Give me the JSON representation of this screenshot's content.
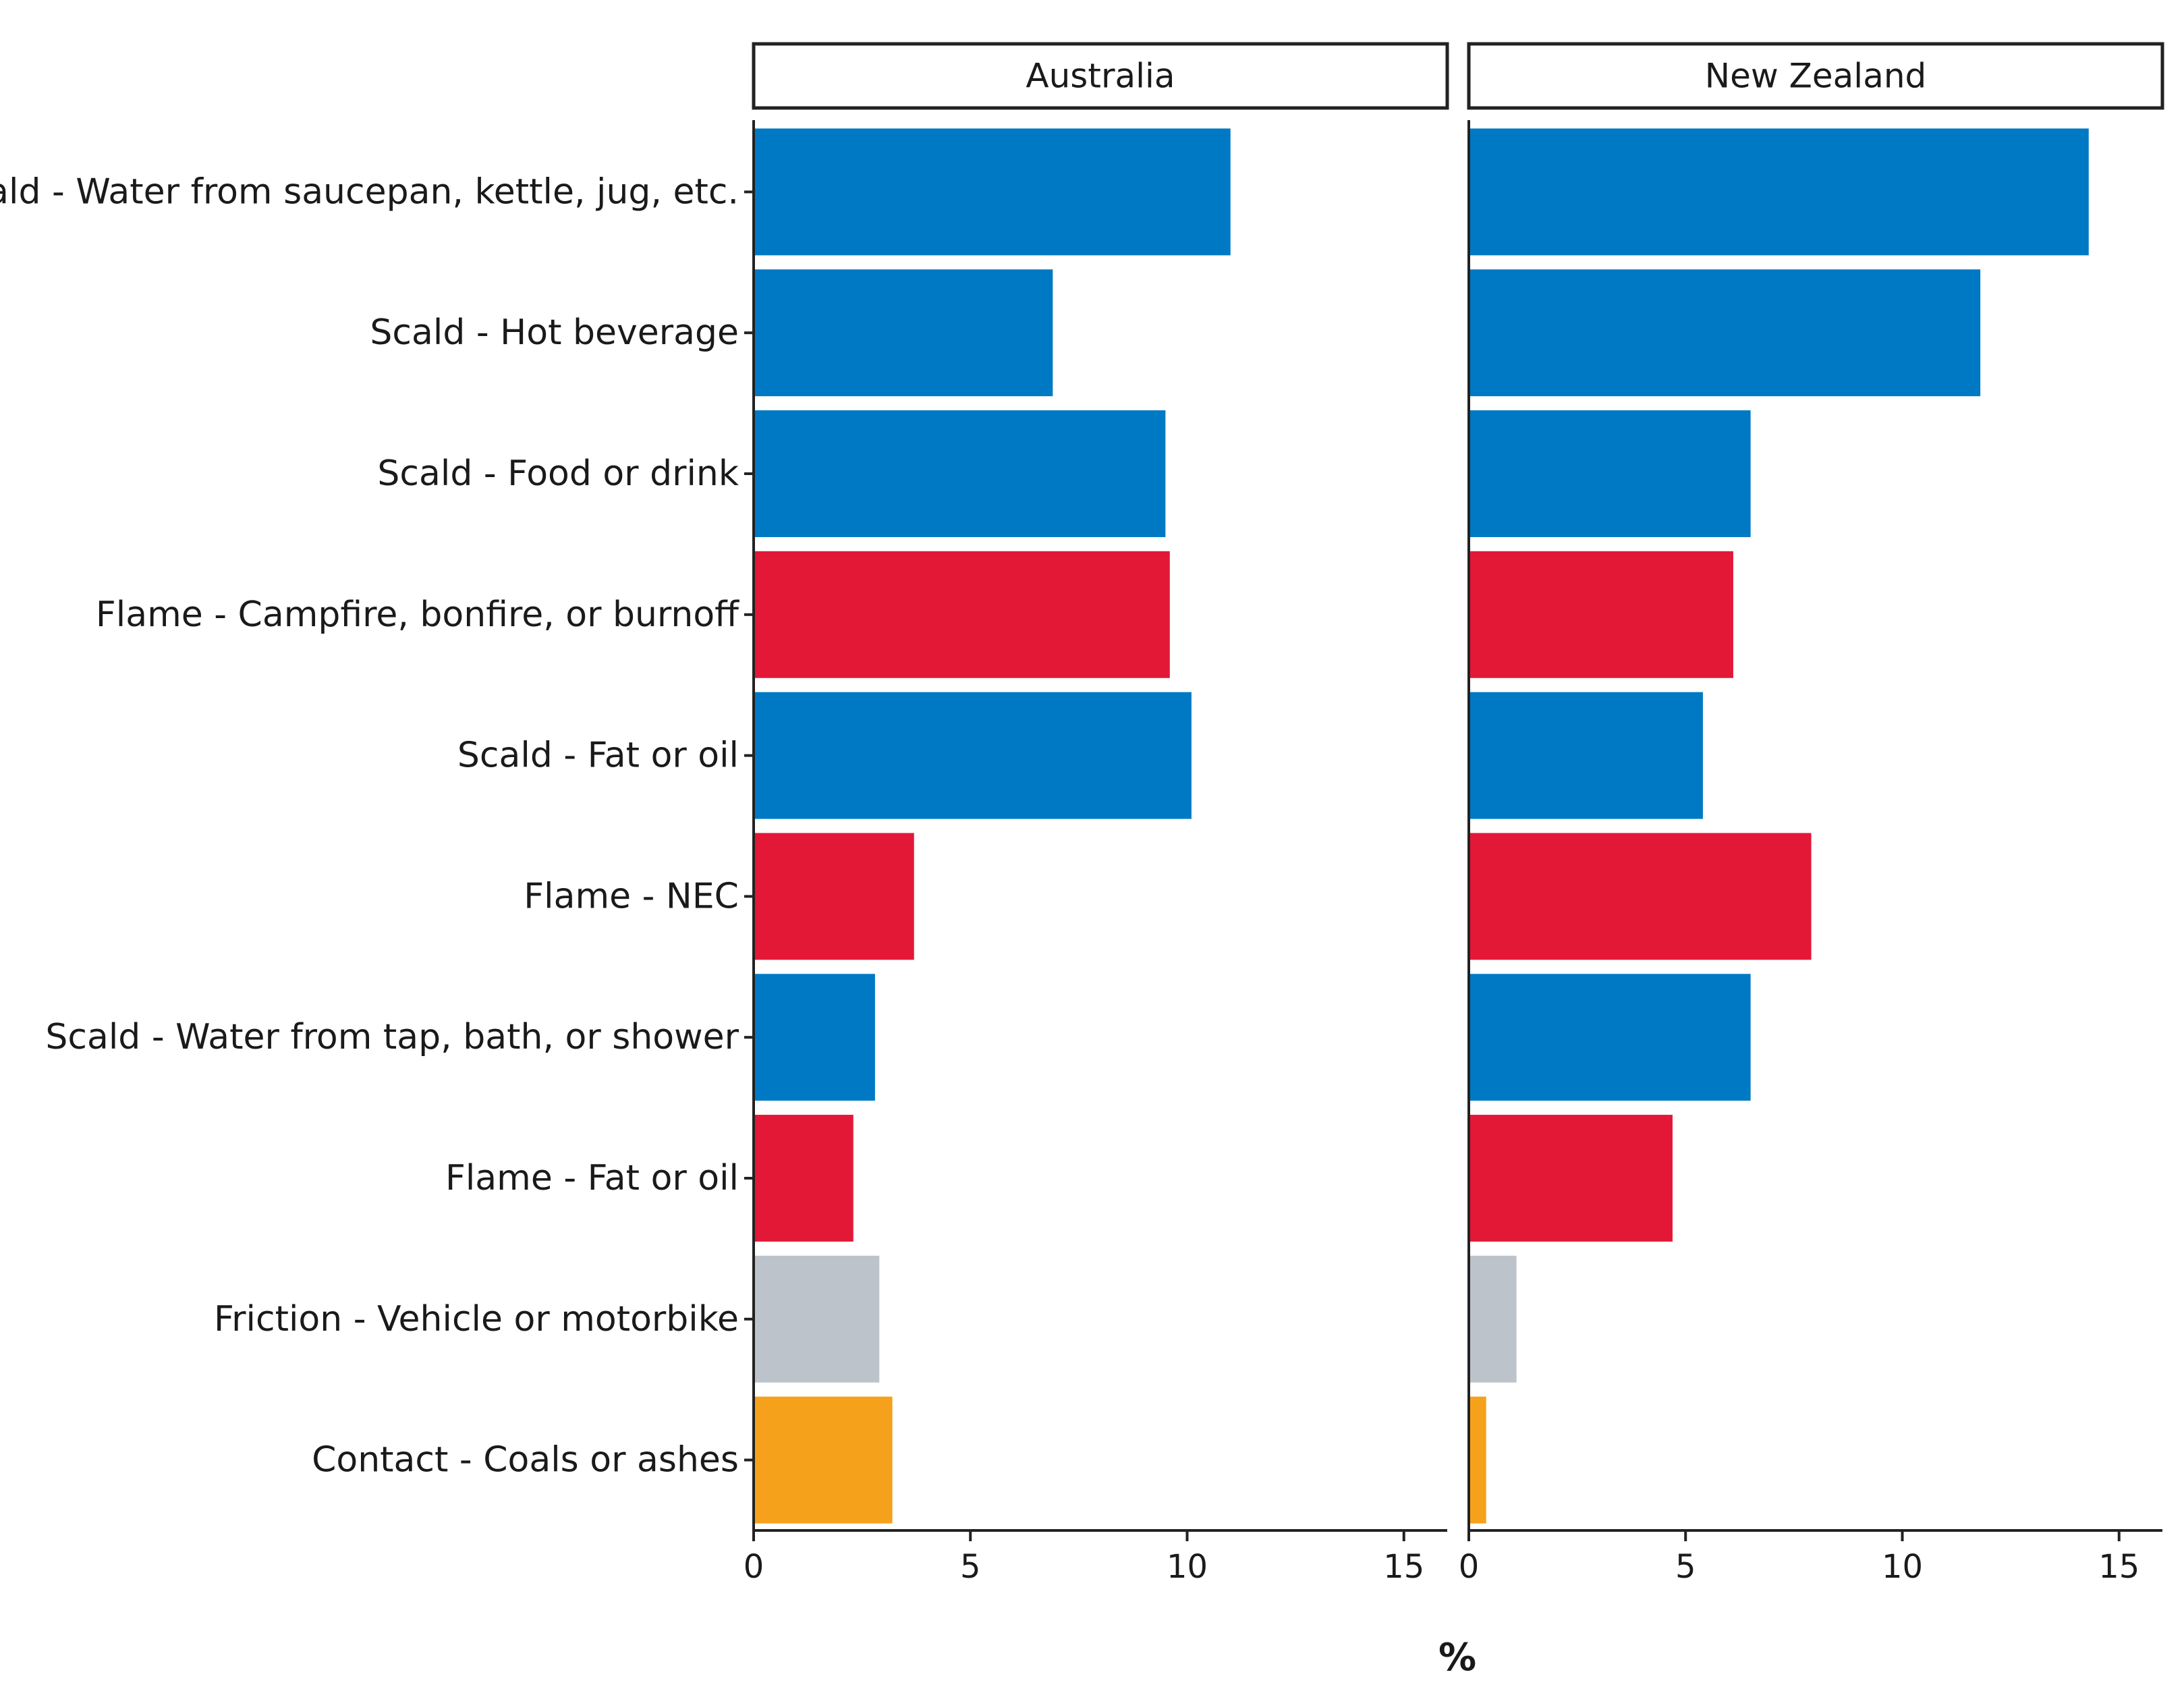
{
  "chart_data": {
    "type": "bar",
    "orientation": "horizontal",
    "title": "",
    "xlabel": "%",
    "ylabel": "",
    "xlim": [
      0,
      16
    ],
    "xticks": [
      0,
      5,
      10,
      15
    ],
    "grid": false,
    "categories": [
      "Scald - Water from saucepan, kettle, jug, etc.",
      "Scald - Hot beverage",
      "Scald - Food or drink",
      "Flame - Campfire, bonfire, or burnoff",
      "Scald - Fat or oil",
      "Flame - NEC",
      "Scald - Water from tap, bath, or shower",
      "Flame - Fat or oil",
      "Friction - Vehicle or motorbike",
      "Contact - Coals or ashes"
    ],
    "category_colors": [
      "#0079c4",
      "#0079c4",
      "#0079c4",
      "#e31836",
      "#0079c4",
      "#e31836",
      "#0079c4",
      "#e31836",
      "#bdc3ca",
      "#f6a11c"
    ],
    "panels": [
      {
        "name": "Australia",
        "values": [
          11.0,
          6.9,
          9.5,
          9.6,
          10.1,
          3.7,
          2.8,
          2.3,
          2.9,
          3.2
        ]
      },
      {
        "name": "New Zealand",
        "values": [
          14.3,
          11.8,
          6.5,
          6.1,
          5.4,
          7.9,
          6.5,
          4.7,
          1.1,
          0.4
        ]
      }
    ]
  }
}
